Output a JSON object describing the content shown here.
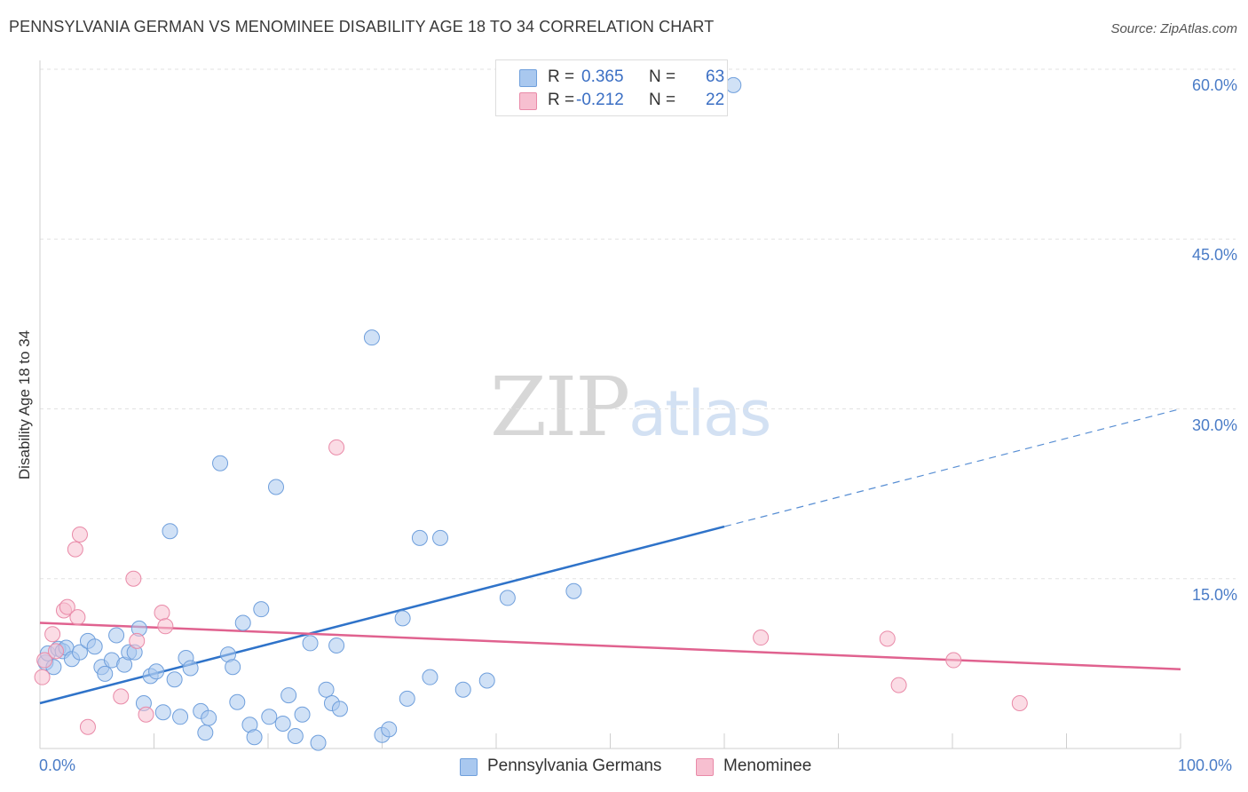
{
  "header": {
    "title": "PENNSYLVANIA GERMAN VS MENOMINEE DISABILITY AGE 18 TO 34 CORRELATION CHART",
    "source": "Source: ZipAtlas.com"
  },
  "watermark": {
    "zip": "ZIP",
    "atlas": "atlas"
  },
  "legend": {
    "r_label": "R =",
    "n_label": "N =",
    "rows": [
      {
        "r": "0.365",
        "n": "63"
      },
      {
        "r": "-0.212",
        "n": "22"
      }
    ]
  },
  "colors": {
    "blue_fill": "#a9c8ef",
    "blue_stroke": "#6f9fdc",
    "blue_line": "#2f73c9",
    "pink_fill": "#f7bfd0",
    "pink_stroke": "#e98aa8",
    "pink_line": "#e0628f",
    "axis_label": "#4a7cc7",
    "grid": "#e2e2e2"
  },
  "chart_data": {
    "type": "scatter",
    "title": "PENNSYLVANIA GERMAN VS MENOMINEE DISABILITY AGE 18 TO 34 CORRELATION CHART",
    "ylabel": "Disability Age 18 to 34",
    "xlim": [
      0,
      100
    ],
    "ylim": [
      0,
      60
    ],
    "x_tick_labels": [
      "0.0%",
      "100.0%"
    ],
    "y_ticks": [
      {
        "value": 15,
        "label": "15.0%"
      },
      {
        "value": 30,
        "label": "30.0%"
      },
      {
        "value": 45,
        "label": "45.0%"
      },
      {
        "value": 60,
        "label": "60.0%"
      }
    ],
    "grid": true,
    "legend_placement": "top-center",
    "series": [
      {
        "name": "Pennsylvania Germans",
        "color": "#a9c8ef",
        "points": [
          [
            0.5,
            7.6
          ],
          [
            0.7,
            8.4
          ],
          [
            1.2,
            7.2
          ],
          [
            1.6,
            8.8
          ],
          [
            2.0,
            8.6
          ],
          [
            2.3,
            8.9
          ],
          [
            2.8,
            7.9
          ],
          [
            3.5,
            8.5
          ],
          [
            4.2,
            9.5
          ],
          [
            4.8,
            9.0
          ],
          [
            5.4,
            7.2
          ],
          [
            5.7,
            6.6
          ],
          [
            6.3,
            7.8
          ],
          [
            6.7,
            10.0
          ],
          [
            7.4,
            7.4
          ],
          [
            7.8,
            8.5
          ],
          [
            8.3,
            8.5
          ],
          [
            8.7,
            10.6
          ],
          [
            9.1,
            4.0
          ],
          [
            9.7,
            6.4
          ],
          [
            10.2,
            6.8
          ],
          [
            10.8,
            3.2
          ],
          [
            11.4,
            19.2
          ],
          [
            11.8,
            6.1
          ],
          [
            12.3,
            2.8
          ],
          [
            12.8,
            8.0
          ],
          [
            13.2,
            7.1
          ],
          [
            14.1,
            3.3
          ],
          [
            14.5,
            1.4
          ],
          [
            14.8,
            2.7
          ],
          [
            15.8,
            25.2
          ],
          [
            16.5,
            8.3
          ],
          [
            16.9,
            7.2
          ],
          [
            17.3,
            4.1
          ],
          [
            17.8,
            11.1
          ],
          [
            18.4,
            2.1
          ],
          [
            18.8,
            1.0
          ],
          [
            19.4,
            12.3
          ],
          [
            20.1,
            2.8
          ],
          [
            20.7,
            23.1
          ],
          [
            21.3,
            2.2
          ],
          [
            21.8,
            4.7
          ],
          [
            22.4,
            1.1
          ],
          [
            23.0,
            3.0
          ],
          [
            23.7,
            9.3
          ],
          [
            24.4,
            0.5
          ],
          [
            25.1,
            5.2
          ],
          [
            25.6,
            4.0
          ],
          [
            26.0,
            9.1
          ],
          [
            26.3,
            3.5
          ],
          [
            29.1,
            36.3
          ],
          [
            30.0,
            1.2
          ],
          [
            30.6,
            1.7
          ],
          [
            31.8,
            11.5
          ],
          [
            32.2,
            4.4
          ],
          [
            33.3,
            18.6
          ],
          [
            34.2,
            6.3
          ],
          [
            35.1,
            18.6
          ],
          [
            37.1,
            5.2
          ],
          [
            39.2,
            6.0
          ],
          [
            41.0,
            13.3
          ],
          [
            46.8,
            13.9
          ],
          [
            60.8,
            58.6
          ]
        ]
      },
      {
        "name": "Menominee",
        "color": "#f7bfd0",
        "points": [
          [
            0.2,
            6.3
          ],
          [
            0.4,
            7.8
          ],
          [
            1.1,
            10.1
          ],
          [
            1.4,
            8.6
          ],
          [
            2.1,
            12.2
          ],
          [
            2.4,
            12.5
          ],
          [
            3.1,
            17.6
          ],
          [
            3.3,
            11.6
          ],
          [
            3.5,
            18.9
          ],
          [
            4.2,
            1.9
          ],
          [
            7.1,
            4.6
          ],
          [
            8.2,
            15.0
          ],
          [
            8.5,
            9.5
          ],
          [
            9.3,
            3.0
          ],
          [
            10.7,
            12.0
          ],
          [
            11.0,
            10.8
          ],
          [
            26.0,
            26.6
          ],
          [
            63.2,
            9.8
          ],
          [
            74.3,
            9.7
          ],
          [
            75.3,
            5.6
          ],
          [
            80.1,
            7.8
          ],
          [
            85.9,
            4.0
          ]
        ]
      }
    ],
    "trendlines": [
      {
        "series": "Pennsylvania Germans",
        "x_start": 0,
        "y_start": 4.0,
        "x_solid_end": 60,
        "y_solid_end": 19.6,
        "x_dash_end": 100,
        "y_dash_end": 30.0,
        "style": "solid-then-dashed"
      },
      {
        "series": "Menominee",
        "x_start": 0,
        "y_start": 11.1,
        "x_end": 100,
        "y_end": 7.0,
        "style": "solid"
      }
    ]
  }
}
